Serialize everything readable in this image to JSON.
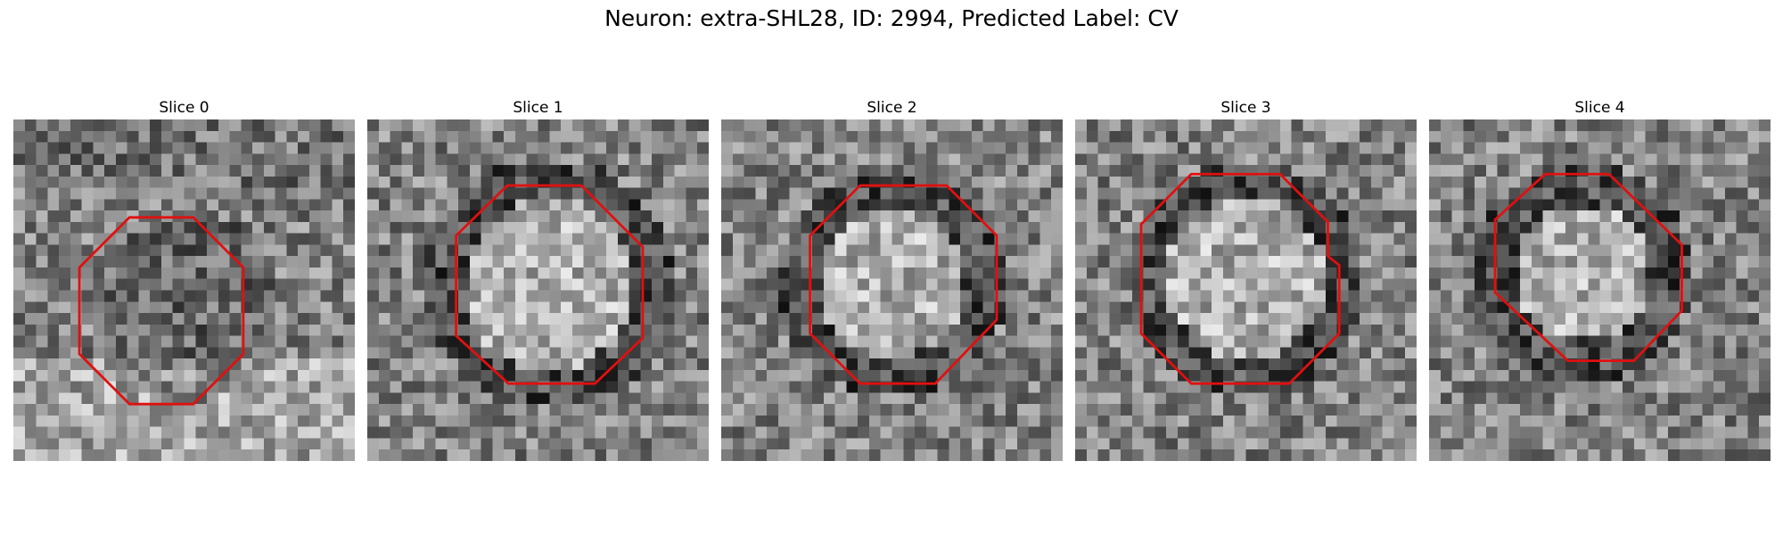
{
  "figure": {
    "title": "Neuron: extra-SHL28, ID: 2994, Predicted Label: CV"
  },
  "grid_cells": 30,
  "contour_color": "#e01010",
  "slices": [
    {
      "label": "Slice 0",
      "center": [
        14.8,
        16.5
      ],
      "radius": 8.5,
      "dark_ring": false,
      "contour": [
        [
          10.2,
          8.6
        ],
        [
          15.8,
          8.6
        ],
        [
          20.2,
          13.0
        ],
        [
          20.2,
          20.6
        ],
        [
          15.8,
          25.0
        ],
        [
          10.2,
          25.0
        ],
        [
          5.8,
          20.6
        ],
        [
          5.8,
          13.0
        ]
      ]
    },
    {
      "label": "Slice 1",
      "center": [
        16.0,
        14.5
      ],
      "radius": 9.5,
      "dark_ring": true,
      "contour": [
        [
          12.3,
          5.8
        ],
        [
          18.8,
          5.8
        ],
        [
          24.2,
          11.2
        ],
        [
          24.2,
          19.2
        ],
        [
          20.0,
          23.2
        ],
        [
          12.4,
          23.2
        ],
        [
          7.8,
          19.0
        ],
        [
          7.8,
          10.2
        ]
      ]
    },
    {
      "label": "Slice 2",
      "center": [
        15.0,
        14.5
      ],
      "radius": 8.5,
      "dark_ring": true,
      "contour": [
        [
          12.2,
          5.8
        ],
        [
          19.8,
          5.8
        ],
        [
          24.2,
          10.2
        ],
        [
          24.2,
          17.6
        ],
        [
          18.8,
          23.2
        ],
        [
          12.2,
          23.2
        ],
        [
          7.8,
          18.8
        ],
        [
          7.8,
          10.2
        ]
      ]
    },
    {
      "label": "Slice 3",
      "center": [
        15.0,
        14.0
      ],
      "radius": 9.0,
      "dark_ring": true,
      "contour": [
        [
          10.2,
          4.8
        ],
        [
          18.0,
          4.8
        ],
        [
          22.2,
          9.0
        ],
        [
          22.2,
          12.0
        ],
        [
          23.2,
          12.8
        ],
        [
          23.2,
          18.8
        ],
        [
          18.8,
          23.2
        ],
        [
          10.2,
          23.2
        ],
        [
          5.8,
          18.8
        ],
        [
          5.8,
          9.2
        ]
      ]
    },
    {
      "label": "Slice 4",
      "center": [
        13.5,
        13.5
      ],
      "radius": 8.0,
      "dark_ring": true,
      "contour": [
        [
          10.2,
          4.8
        ],
        [
          15.8,
          4.8
        ],
        [
          22.2,
          11.0
        ],
        [
          22.2,
          16.8
        ],
        [
          18.0,
          21.2
        ],
        [
          12.2,
          21.2
        ],
        [
          5.8,
          15.2
        ],
        [
          5.8,
          8.8
        ]
      ]
    }
  ]
}
